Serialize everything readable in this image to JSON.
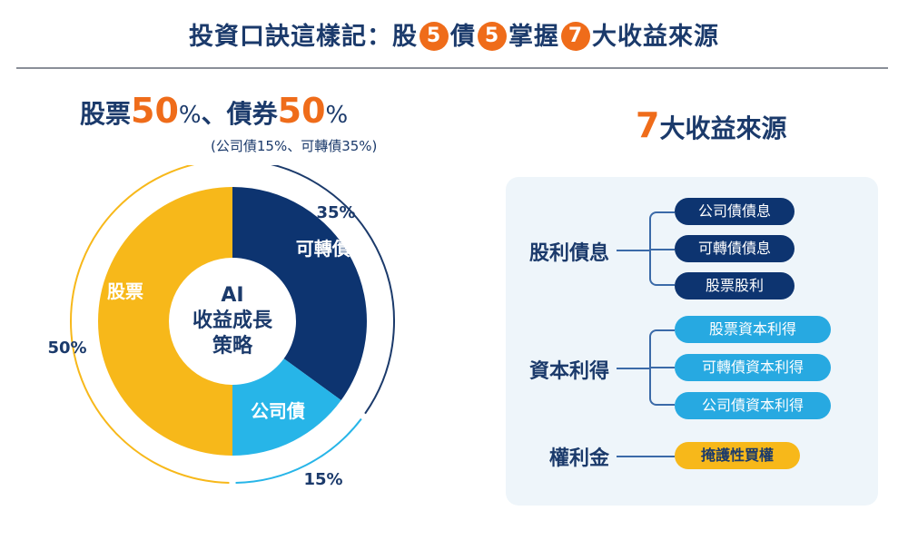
{
  "header": {
    "title_a": "投資口訣這樣記：股",
    "num_1": "5",
    "title_b": "債",
    "num_2": "5",
    "title_c": "掌握",
    "num_3": "7",
    "title_d": "大收益來源"
  },
  "allocation": {
    "stock_label": "股票",
    "stock_pct": "50",
    "pct_sign": "%",
    "sep": "、",
    "bond_label": "債券",
    "bond_pct": "50",
    "sub": "(公司債15%、可轉債35%)"
  },
  "chart_data": {
    "type": "pie",
    "center_label": [
      "AI",
      "收益成長",
      "策略"
    ],
    "slices": [
      {
        "label": "可轉債",
        "value": 35,
        "pct_label": "35%",
        "color": "#0d3470"
      },
      {
        "label": "公司債",
        "value": 15,
        "pct_label": "15%",
        "color": "#27b5e8"
      },
      {
        "label": "股票",
        "value": 50,
        "pct_label": "50%",
        "color": "#f7b81a"
      }
    ]
  },
  "sources": {
    "title_num": "7",
    "title": "大收益來源",
    "groups": [
      {
        "label": "股利債息",
        "items": [
          "公司債債息",
          "可轉債債息",
          "股票股利"
        ],
        "color": "navy"
      },
      {
        "label": "資本利得",
        "items": [
          "股票資本利得",
          "可轉債資本利得",
          "公司債資本利得"
        ],
        "color": "cyan"
      },
      {
        "label": "權利金",
        "items": [
          "掩護性買權"
        ],
        "color": "gold"
      }
    ]
  }
}
